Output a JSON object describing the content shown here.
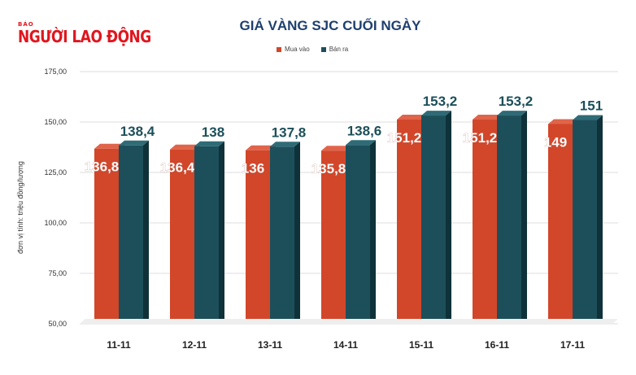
{
  "logo": {
    "small": "BÁO",
    "big": "NGƯỜI LAO ĐỘNG"
  },
  "chart_data": {
    "type": "bar",
    "title": "GIÁ VÀNG SJC CUỐI NGÀY",
    "ylabel": "đơn vị tính: triệu đồng/lượng",
    "xlabel": "",
    "categories": [
      "11-11",
      "12-11",
      "13-11",
      "14-11",
      "15-11",
      "16-11",
      "17-11"
    ],
    "series": [
      {
        "name": "Mua vào",
        "color": "#d2462a",
        "values": [
          136.8,
          136.4,
          136,
          135.8,
          151.2,
          151.2,
          149
        ],
        "labels": [
          "136,8",
          "136,4",
          "136",
          "135,8",
          "151,2",
          "151,2",
          "149"
        ]
      },
      {
        "name": "Bán ra",
        "color": "#1c4f5a",
        "values": [
          138.4,
          138,
          137.8,
          138.6,
          153.2,
          153.2,
          151
        ],
        "labels": [
          "138,4",
          "138",
          "137,8",
          "138,6",
          "153,2",
          "153,2",
          "151"
        ]
      }
    ],
    "ylim": [
      50,
      175
    ],
    "yticks": [
      "50,00",
      "75,00",
      "100,00",
      "125,00",
      "150,00",
      "175,00"
    ],
    "grid": true,
    "legend": "top",
    "style": "3d"
  }
}
